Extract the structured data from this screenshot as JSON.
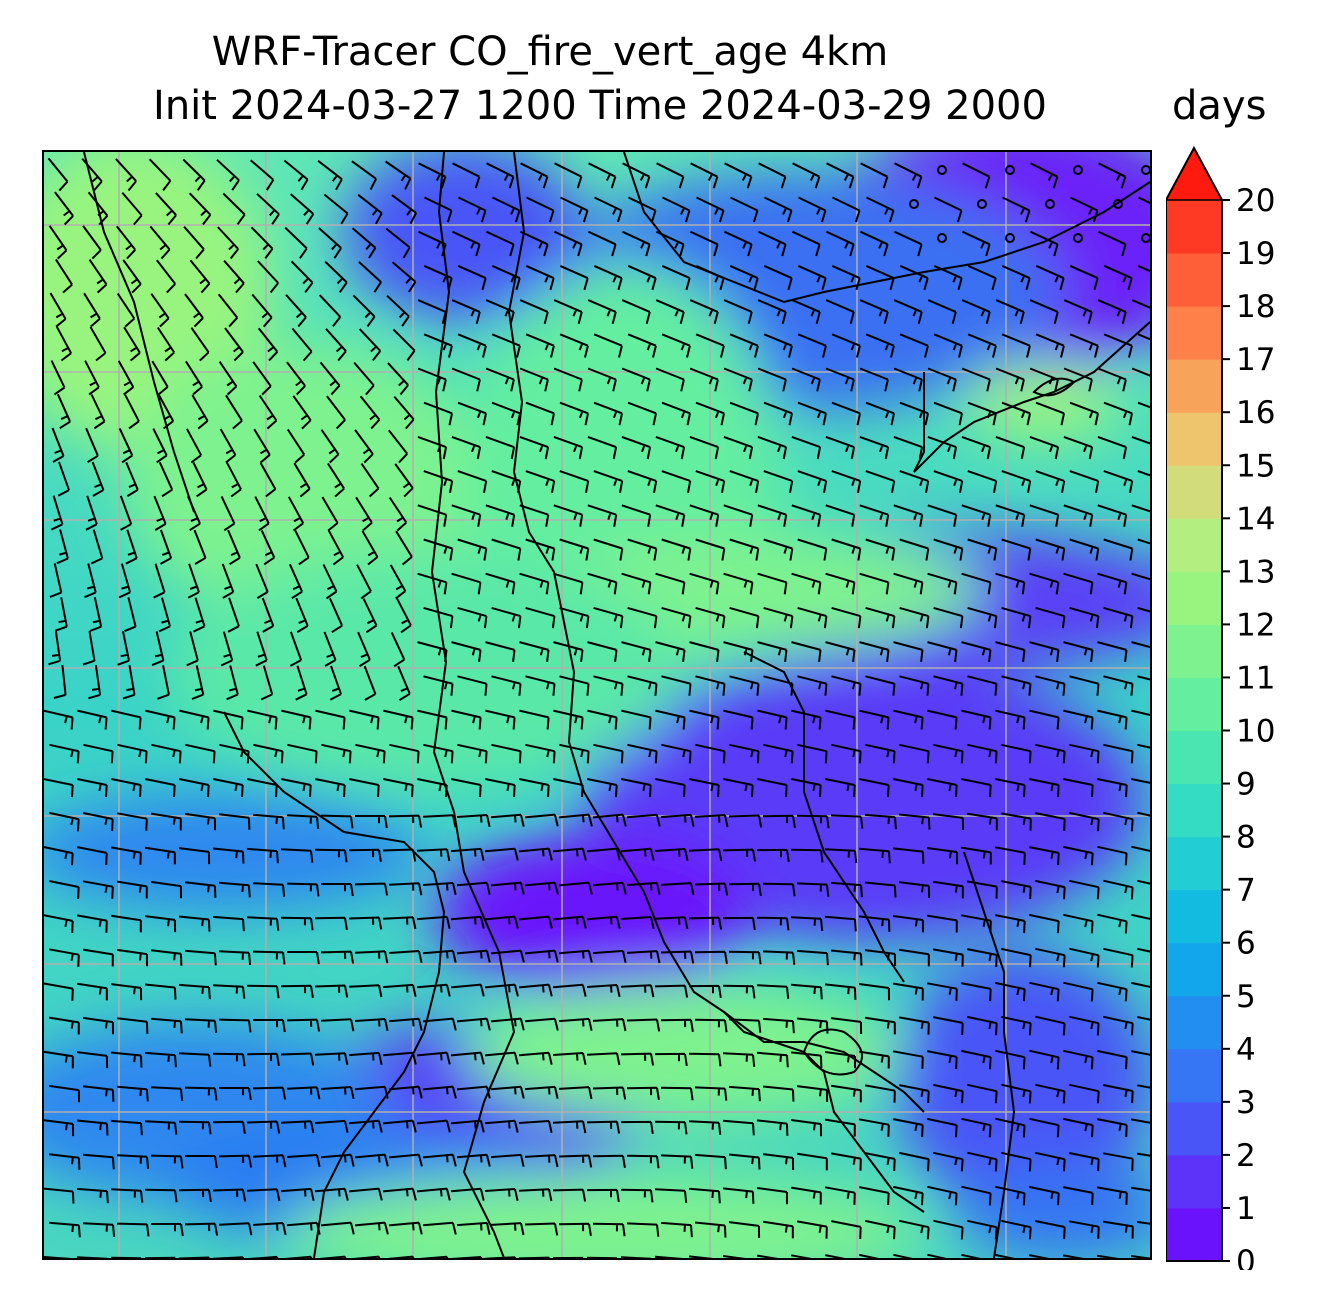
{
  "title": {
    "line1": "WRF-Tracer CO_fire_vert_age 4km",
    "line2": "Init 2024-03-27 1200 Time 2024-03-29 2000"
  },
  "colorbar": {
    "units": "days",
    "min": 0,
    "max": 20,
    "extend": "max",
    "ticks": [
      "0",
      "1",
      "2",
      "3",
      "4",
      "5",
      "6",
      "7",
      "8",
      "9",
      "10",
      "11",
      "12",
      "13",
      "14",
      "15",
      "16",
      "17",
      "18",
      "19",
      "20"
    ],
    "colors": [
      "#6a12fb",
      "#5d33fa",
      "#4a55f7",
      "#3675f3",
      "#228ff0",
      "#12a6ea",
      "#12bbe0",
      "#22cdd3",
      "#34dcc3",
      "#4ae6b2",
      "#63eea0",
      "#7ef28f",
      "#98f47f",
      "#b3ee80",
      "#d2dc7a",
      "#eec46c",
      "#f8a35a",
      "#fe814a",
      "#ff5f38",
      "#ff3a24"
    ],
    "extend_color": "#ff1a10"
  },
  "map": {
    "field": "CO_fire_vert_age",
    "gridlines": true,
    "wind_barbs": true
  }
}
